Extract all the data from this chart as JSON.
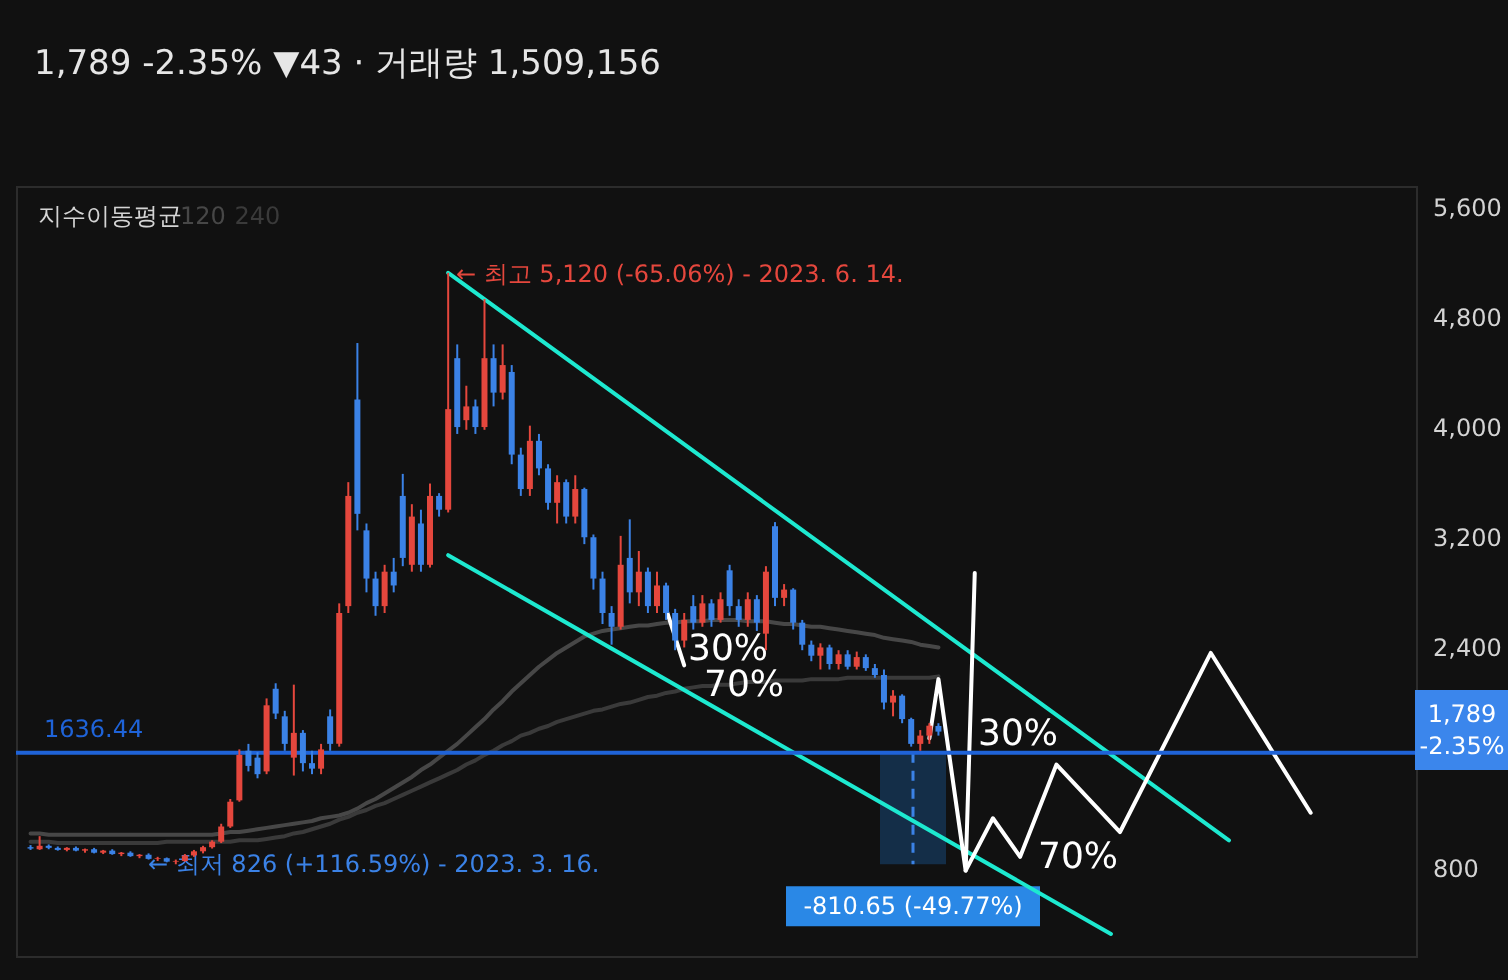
{
  "chart_data": {
    "type": "candlestick",
    "title": "1,789 -2.35% ▼43 · 거래량 1,509,156",
    "legend": "top left",
    "legend_title": "지수이동평균",
    "tick_labels": "y",
    "ylim": [
      160,
      5750
    ],
    "yticks": [
      800,
      {
        "value": 2400,
        "label": "2,400"
      },
      {
        "value": 3200,
        "label": "3,200"
      },
      {
        "value": 4000,
        "label": "4,000"
      },
      {
        "value": 4800,
        "label": "4,800"
      },
      {
        "value": 5600,
        "label": "5,600"
      }
    ],
    "categories": [
      null,
      null,
      null,
      null,
      null,
      null,
      null,
      null,
      null,
      null,
      null,
      null,
      null,
      null,
      null,
      null,
      null,
      null,
      null,
      null,
      null,
      null,
      null,
      null,
      null,
      null,
      null,
      null,
      null,
      null,
      null,
      null,
      null,
      null,
      null,
      null,
      null,
      null,
      null,
      null,
      null,
      null,
      null,
      null,
      null,
      null,
      null,
      null,
      null,
      null,
      null,
      null,
      null,
      null,
      null,
      null,
      null,
      null,
      null,
      null,
      null,
      null,
      null,
      null,
      null,
      null,
      null,
      null,
      null,
      null,
      null,
      null,
      null,
      null,
      null,
      null,
      null,
      null,
      null,
      null,
      null,
      null,
      null,
      null,
      null,
      null,
      null,
      null,
      null,
      null,
      null,
      null,
      null,
      null,
      null,
      null,
      null,
      null,
      null,
      null,
      null,
      null,
      null,
      null,
      null,
      null,
      null,
      null,
      null,
      null,
      null,
      null,
      null,
      null,
      null,
      null,
      null,
      null,
      null,
      null,
      null,
      null,
      null,
      null,
      null,
      null,
      null,
      null,
      null,
      null,
      null,
      null,
      null,
      null,
      null,
      null,
      null,
      null,
      null,
      null,
      null,
      null,
      null,
      null,
      null,
      null,
      null,
      null,
      null,
      null,
      null,
      null
    ],
    "ohlc": [
      [
        950,
        965,
        930,
        940
      ],
      [
        935,
        1030,
        930,
        960
      ],
      [
        960,
        970,
        935,
        945
      ],
      [
        945,
        955,
        925,
        930
      ],
      [
        930,
        950,
        920,
        945
      ],
      [
        945,
        955,
        920,
        925
      ],
      [
        925,
        940,
        910,
        935
      ],
      [
        935,
        945,
        905,
        910
      ],
      [
        910,
        930,
        900,
        925
      ],
      [
        925,
        935,
        895,
        900
      ],
      [
        900,
        915,
        885,
        910
      ],
      [
        910,
        920,
        880,
        885
      ],
      [
        885,
        900,
        870,
        895
      ],
      [
        895,
        905,
        860,
        865
      ],
      [
        865,
        880,
        850,
        870
      ],
      [
        870,
        875,
        840,
        845
      ],
      [
        845,
        860,
        826,
        850
      ],
      [
        850,
        900,
        845,
        890
      ],
      [
        890,
        930,
        880,
        920
      ],
      [
        920,
        960,
        905,
        950
      ],
      [
        950,
        1000,
        940,
        990
      ],
      [
        990,
        1120,
        980,
        1100
      ],
      [
        1100,
        1300,
        1090,
        1280
      ],
      [
        1290,
        1660,
        1280,
        1620
      ],
      [
        1650,
        1700,
        1500,
        1540
      ],
      [
        1600,
        1640,
        1450,
        1480
      ],
      [
        1500,
        2030,
        1480,
        1980
      ],
      [
        2100,
        2140,
        1880,
        1920
      ],
      [
        1900,
        1940,
        1650,
        1700
      ],
      [
        1600,
        2130,
        1470,
        1780
      ],
      [
        1780,
        1800,
        1500,
        1560
      ],
      [
        1560,
        1650,
        1480,
        1520
      ],
      [
        1520,
        1700,
        1480,
        1660
      ],
      [
        1900,
        1950,
        1650,
        1700
      ],
      [
        1700,
        2720,
        1680,
        2650
      ],
      [
        2700,
        3600,
        2650,
        3500
      ],
      [
        4200,
        4610,
        3250,
        3370
      ],
      [
        3250,
        3300,
        2800,
        2900
      ],
      [
        2900,
        2950,
        2630,
        2700
      ],
      [
        2700,
        3000,
        2650,
        2950
      ],
      [
        2950,
        3050,
        2800,
        2850
      ],
      [
        3500,
        3660,
        2990,
        3050
      ],
      [
        3000,
        3440,
        2950,
        3350
      ],
      [
        3300,
        3400,
        2950,
        3000
      ],
      [
        3000,
        3590,
        2980,
        3500
      ],
      [
        3500,
        3520,
        3350,
        3400
      ],
      [
        3400,
        5120,
        3380,
        4130
      ],
      [
        4500,
        4600,
        3950,
        4000
      ],
      [
        4050,
        4300,
        3980,
        4150
      ],
      [
        4150,
        4200,
        3950,
        4000
      ],
      [
        4000,
        4930,
        3980,
        4500
      ],
      [
        4500,
        4600,
        4150,
        4250
      ],
      [
        4250,
        4600,
        4200,
        4450
      ],
      [
        4400,
        4450,
        3730,
        3800
      ],
      [
        3800,
        3850,
        3500,
        3550
      ],
      [
        3550,
        4010,
        3500,
        3900
      ],
      [
        3900,
        3950,
        3650,
        3700
      ],
      [
        3700,
        3730,
        3400,
        3450
      ],
      [
        3450,
        3650,
        3300,
        3600
      ],
      [
        3600,
        3620,
        3300,
        3350
      ],
      [
        3350,
        3650,
        3300,
        3550
      ],
      [
        3550,
        3560,
        3150,
        3200
      ],
      [
        3200,
        3220,
        2820,
        2900
      ],
      [
        2900,
        2950,
        2570,
        2650
      ],
      [
        2650,
        2700,
        2420,
        2550
      ],
      [
        2550,
        3210,
        2530,
        3000
      ],
      [
        3050,
        3330,
        2720,
        2800
      ],
      [
        2800,
        3100,
        2700,
        2950
      ],
      [
        2950,
        2980,
        2650,
        2700
      ],
      [
        2700,
        2950,
        2650,
        2850
      ],
      [
        2850,
        2870,
        2600,
        2650
      ],
      [
        2650,
        2680,
        2380,
        2450
      ],
      [
        2450,
        2650,
        2400,
        2600
      ],
      [
        2700,
        2780,
        2530,
        2580
      ],
      [
        2580,
        2780,
        2550,
        2720
      ],
      [
        2720,
        2750,
        2550,
        2600
      ],
      [
        2600,
        2800,
        2580,
        2750
      ],
      [
        2960,
        3000,
        2630,
        2700
      ],
      [
        2700,
        2750,
        2550,
        2600
      ],
      [
        2600,
        2800,
        2550,
        2750
      ],
      [
        2750,
        2780,
        2520,
        2580
      ],
      [
        2500,
        2990,
        2380,
        2950
      ],
      [
        3280,
        3310,
        2700,
        2760
      ],
      [
        2760,
        2860,
        2700,
        2820
      ],
      [
        2820,
        2830,
        2530,
        2580
      ],
      [
        2580,
        2600,
        2380,
        2420
      ],
      [
        2420,
        2450,
        2300,
        2340
      ],
      [
        2340,
        2430,
        2240,
        2400
      ],
      [
        2400,
        2420,
        2240,
        2280
      ],
      [
        2280,
        2380,
        2240,
        2350
      ],
      [
        2350,
        2380,
        2240,
        2260
      ],
      [
        2260,
        2370,
        2240,
        2330
      ],
      [
        2330,
        2350,
        2230,
        2250
      ],
      [
        2250,
        2280,
        2180,
        2200
      ],
      [
        2200,
        2240,
        1950,
        2000
      ],
      [
        2000,
        2090,
        1900,
        2050
      ],
      [
        2050,
        2060,
        1850,
        1880
      ],
      [
        1880,
        1890,
        1680,
        1700
      ],
      [
        1700,
        1800,
        1650,
        1760
      ],
      [
        1760,
        1850,
        1700,
        1832
      ],
      [
        1830,
        1850,
        1760,
        1789
      ],
      null,
      null,
      null,
      null,
      null,
      null,
      null,
      null,
      null,
      null,
      null,
      null,
      null,
      null,
      null,
      null,
      null,
      null,
      null,
      null,
      null,
      null,
      null,
      null,
      null,
      null,
      null,
      null,
      null,
      null,
      null,
      null,
      null,
      null,
      null,
      null,
      null,
      null,
      null,
      null,
      null,
      null,
      null,
      null,
      null,
      null,
      null,
      null,
      null,
      null,
      null
    ],
    "colors": [
      "#3b82e6",
      "#e5473d",
      "#3b82e6",
      "#3b82e6",
      "#e5473d",
      "#3b82e6",
      "#e5473d",
      "#3b82e6",
      "#e5473d",
      "#3b82e6",
      "#e5473d",
      "#3b82e6",
      "#e5473d",
      "#3b82e6",
      "#e5473d",
      "#3b82e6",
      "#e5473d",
      "#e5473d",
      "#e5473d",
      "#e5473d",
      "#e5473d",
      "#e5473d",
      "#e5473d",
      "#e5473d",
      "#3b82e6",
      "#3b82e6",
      "#e5473d",
      "#3b82e6",
      "#3b82e6",
      "#e5473d",
      "#3b82e6",
      "#3b82e6",
      "#e5473d",
      "#3b82e6",
      "#e5473d",
      "#e5473d",
      "#3b82e6",
      "#3b82e6",
      "#3b82e6",
      "#e5473d",
      "#3b82e6",
      "#3b82e6",
      "#e5473d",
      "#3b82e6",
      "#e5473d",
      "#3b82e6",
      "#e5473d",
      "#3b82e6",
      "#e5473d",
      "#3b82e6",
      "#e5473d",
      "#3b82e6",
      "#e5473d",
      "#3b82e6",
      "#3b82e6",
      "#e5473d",
      "#3b82e6",
      "#3b82e6",
      "#e5473d",
      "#3b82e6",
      "#e5473d",
      "#3b82e6",
      "#3b82e6",
      "#3b82e6",
      "#3b82e6",
      "#e5473d",
      "#3b82e6",
      "#e5473d",
      "#3b82e6",
      "#e5473d",
      "#3b82e6",
      "#3b82e6",
      "#e5473d",
      "#3b82e6",
      "#e5473d",
      "#3b82e6",
      "#e5473d",
      "#3b82e6",
      "#3b82e6",
      "#e5473d",
      "#3b82e6",
      "#e5473d",
      "#3b82e6",
      "#e5473d",
      "#3b82e6",
      "#3b82e6",
      "#3b82e6",
      "#e5473d",
      "#3b82e6",
      "#e5473d",
      "#3b82e6",
      "#e5473d",
      "#3b82e6",
      "#3b82e6",
      "#3b82e6",
      "#e5473d",
      "#3b82e6",
      "#3b82e6",
      "#e5473d",
      "#e5473d",
      "#3b82e6",
      null,
      null,
      null,
      null,
      null,
      null,
      null,
      null,
      null,
      null,
      null,
      null,
      null,
      null,
      null,
      null,
      null,
      null,
      null,
      null,
      null,
      null,
      null,
      null,
      null,
      null,
      null,
      null,
      null,
      null,
      null,
      null,
      null,
      null,
      null,
      null,
      null,
      null,
      null,
      null,
      null,
      null,
      null,
      null,
      null,
      null,
      null,
      null,
      null,
      null,
      null
    ],
    "series": [
      {
        "type": "line",
        "name": "120",
        "color": "#474747",
        "values": [
          1050,
          1050,
          1040,
          1040,
          1040,
          1040,
          1040,
          1040,
          1040,
          1040,
          1040,
          1040,
          1040,
          1040,
          1040,
          1040,
          1040,
          1040,
          1040,
          1040,
          1040,
          1050,
          1060,
          1060,
          1070,
          1080,
          1090,
          1100,
          1110,
          1120,
          1130,
          1140,
          1160,
          1170,
          1180,
          1200,
          1230,
          1270,
          1300,
          1340,
          1380,
          1420,
          1460,
          1510,
          1550,
          1600,
          1650,
          1700,
          1760,
          1820,
          1880,
          1950,
          2010,
          2080,
          2140,
          2200,
          2260,
          2310,
          2360,
          2400,
          2440,
          2480,
          2500,
          2520,
          2530,
          2540,
          2550,
          2560,
          2560,
          2570,
          2580,
          2580,
          2590,
          2590,
          2590,
          2600,
          2600,
          2600,
          2600,
          2590,
          2590,
          2590,
          2580,
          2570,
          2570,
          2560,
          2550,
          2550,
          2540,
          2530,
          2520,
          2510,
          2500,
          2490,
          2470,
          2460,
          2450,
          2440,
          2420,
          2410,
          2400,
          null,
          null,
          null,
          null,
          null,
          null,
          null,
          null,
          null,
          null,
          null,
          null,
          null,
          null,
          null,
          null,
          null,
          null,
          null,
          null,
          null,
          null,
          null,
          null,
          null,
          null,
          null,
          null,
          null,
          null,
          null,
          null,
          null,
          null,
          null,
          null,
          null,
          null,
          null,
          null,
          null,
          null,
          null,
          null,
          null,
          null,
          null,
          null,
          null,
          null,
          null
        ]
      },
      {
        "type": "line",
        "name": "240",
        "color": "#3a3a3a",
        "values": [
          990,
          990,
          990,
          980,
          980,
          980,
          980,
          980,
          980,
          980,
          980,
          980,
          980,
          980,
          980,
          990,
          990,
          990,
          990,
          990,
          990,
          990,
          990,
          1000,
          1000,
          1000,
          1010,
          1020,
          1030,
          1050,
          1060,
          1080,
          1100,
          1120,
          1150,
          1170,
          1200,
          1220,
          1250,
          1270,
          1300,
          1330,
          1360,
          1390,
          1420,
          1450,
          1480,
          1510,
          1550,
          1580,
          1620,
          1650,
          1690,
          1720,
          1760,
          1780,
          1810,
          1830,
          1860,
          1880,
          1900,
          1920,
          1940,
          1950,
          1970,
          1990,
          2000,
          2020,
          2040,
          2050,
          2070,
          2080,
          2100,
          2110,
          2120,
          2120,
          2130,
          2130,
          2140,
          2150,
          2150,
          2150,
          2160,
          2160,
          2160,
          2160,
          2170,
          2170,
          2170,
          2170,
          2180,
          2180,
          2180,
          2180,
          2180,
          2180,
          2180,
          2180,
          2180,
          2180,
          2190,
          null,
          null,
          null,
          null,
          null,
          null,
          null,
          null,
          null,
          null,
          null,
          null,
          null,
          null,
          null,
          null,
          null,
          null,
          null,
          null,
          null,
          null,
          null,
          null,
          null,
          null,
          null,
          null,
          null,
          null,
          null,
          null,
          null,
          null,
          null,
          null,
          null,
          null,
          null,
          null,
          null,
          null,
          null,
          null,
          null,
          null,
          null,
          null,
          null,
          null,
          null
        ]
      },
      {
        "type": "line",
        "color": "#1de9d0",
        "values": [
          null,
          null,
          null,
          null,
          null,
          null,
          null,
          null,
          null,
          null,
          null,
          null,
          null,
          null,
          null,
          null,
          null,
          null,
          null,
          null,
          null,
          null,
          null,
          null,
          null,
          null,
          null,
          null,
          null,
          null,
          null,
          null,
          null,
          null,
          null,
          null,
          null,
          null,
          null,
          null,
          null,
          null,
          null,
          null,
          null,
          null,
          5120,
          null,
          null,
          null,
          null,
          null,
          null,
          null,
          null,
          null,
          null,
          null,
          null,
          null,
          null,
          null,
          null,
          null,
          null,
          null,
          null,
          null,
          null,
          null,
          null,
          null,
          null,
          null,
          null,
          null,
          null,
          null,
          null,
          null,
          null,
          null,
          null,
          null,
          null,
          null,
          null,
          null,
          null,
          null,
          null,
          null,
          null,
          null,
          null,
          null,
          null,
          null,
          null,
          null,
          null,
          null,
          null,
          null,
          null,
          null,
          null,
          null,
          null,
          null,
          null,
          null,
          null,
          null,
          null,
          null,
          null,
          null,
          null,
          null,
          null,
          null,
          null,
          null,
          null,
          null,
          null,
          null,
          null,
          null,
          null,
          null,
          1000,
          null,
          null,
          null,
          null,
          null,
          null,
          null,
          null,
          null,
          null,
          null,
          null,
          null,
          null,
          null,
          null,
          null,
          null,
          null
        ]
      },
      {
        "type": "line",
        "color": "#1de9d0",
        "values": [
          null,
          null,
          null,
          null,
          null,
          null,
          null,
          null,
          null,
          null,
          null,
          null,
          null,
          null,
          null,
          null,
          null,
          null,
          null,
          null,
          null,
          null,
          null,
          null,
          null,
          null,
          null,
          null,
          null,
          null,
          null,
          null,
          null,
          null,
          null,
          null,
          null,
          null,
          null,
          null,
          null,
          null,
          null,
          null,
          null,
          null,
          3070,
          null,
          null,
          null,
          null,
          null,
          null,
          null,
          null,
          null,
          null,
          null,
          null,
          null,
          null,
          null,
          null,
          null,
          null,
          null,
          null,
          null,
          null,
          null,
          null,
          null,
          null,
          null,
          null,
          null,
          null,
          null,
          null,
          null,
          null,
          null,
          null,
          null,
          null,
          null,
          null,
          null,
          null,
          null,
          null,
          null,
          null,
          null,
          null,
          null,
          null,
          null,
          null,
          null,
          null,
          null,
          null,
          null,
          null,
          null,
          null,
          null,
          null,
          null,
          null,
          null,
          null,
          null,
          null,
          null,
          null,
          null,
          null,
          320,
          null,
          null,
          null,
          null,
          null,
          null,
          null,
          null,
          null,
          null,
          null,
          null,
          null,
          null,
          null,
          null,
          null,
          null,
          null,
          null,
          null,
          null,
          null,
          null,
          null,
          null,
          null,
          null,
          null,
          null,
          null,
          null
        ]
      },
      {
        "type": "line",
        "color": "#ffffff",
        "values": [
          null,
          null,
          null,
          null,
          null,
          null,
          null,
          null,
          null,
          null,
          null,
          null,
          null,
          null,
          null,
          null,
          null,
          null,
          null,
          null,
          null,
          null,
          null,
          null,
          null,
          null,
          null,
          null,
          null,
          null,
          null,
          null,
          null,
          null,
          null,
          null,
          null,
          null,
          null,
          null,
          null,
          null,
          null,
          null,
          null,
          null,
          null,
          null,
          null,
          null,
          null,
          null,
          null,
          null,
          null,
          null,
          null,
          null,
          null,
          null,
          null,
          null,
          null,
          null,
          null,
          null,
          null,
          null,
          null,
          null,
          2680,
          null,
          2270,
          null,
          null,
          null,
          null,
          null,
          null,
          null,
          null,
          null,
          null,
          null,
          null,
          null,
          null,
          null,
          null,
          null,
          null,
          null,
          null,
          null,
          null,
          null,
          null,
          null,
          null,
          null,
          null,
          null,
          null,
          null,
          null,
          null,
          null,
          null,
          null,
          null,
          null,
          null,
          null,
          null,
          null,
          null,
          null,
          null,
          null,
          null,
          null,
          null,
          null,
          null,
          null,
          null,
          null,
          null,
          null,
          null,
          null,
          null,
          null,
          null,
          null,
          null,
          null,
          null,
          null,
          null,
          null,
          null,
          null,
          null,
          null,
          null,
          null,
          null,
          null,
          null,
          null,
          null
        ]
      },
      {
        "type": "line",
        "color": "#ffffff",
        "values": [
          null,
          null,
          null,
          null,
          null,
          null,
          null,
          null,
          null,
          null,
          null,
          null,
          null,
          null,
          null,
          null,
          null,
          null,
          null,
          null,
          null,
          null,
          null,
          null,
          null,
          null,
          null,
          null,
          null,
          null,
          null,
          null,
          null,
          null,
          null,
          null,
          null,
          null,
          null,
          null,
          null,
          null,
          null,
          null,
          null,
          null,
          null,
          null,
          null,
          null,
          null,
          null,
          null,
          null,
          null,
          null,
          null,
          null,
          null,
          null,
          null,
          null,
          null,
          null,
          null,
          null,
          null,
          null,
          null,
          null,
          null,
          null,
          null,
          null,
          null,
          null,
          null,
          null,
          null,
          null,
          null,
          null,
          null,
          null,
          null,
          null,
          null,
          null,
          null,
          null,
          null,
          null,
          null,
          null,
          null,
          null,
          null,
          null,
          null,
          1740,
          2170,
          null,
          null,
          780,
          2940,
          null,
          null,
          null,
          null,
          null,
          null,
          null,
          null,
          null,
          null,
          null,
          null,
          null,
          null,
          null,
          null,
          null,
          null,
          null,
          null,
          null,
          null,
          null,
          null,
          null,
          null,
          null,
          null,
          null,
          null,
          null,
          null,
          null,
          null,
          null,
          null,
          null,
          null,
          null,
          null,
          null,
          null,
          null,
          null,
          null,
          null,
          null
        ]
      },
      {
        "type": "line",
        "color": "#ffffff",
        "values": [
          null,
          null,
          null,
          null,
          null,
          null,
          null,
          null,
          null,
          null,
          null,
          null,
          null,
          null,
          null,
          null,
          null,
          null,
          null,
          null,
          null,
          null,
          null,
          null,
          null,
          null,
          null,
          null,
          null,
          null,
          null,
          null,
          null,
          null,
          null,
          null,
          null,
          null,
          null,
          null,
          null,
          null,
          null,
          null,
          null,
          null,
          null,
          null,
          null,
          null,
          null,
          null,
          null,
          null,
          null,
          null,
          null,
          null,
          null,
          null,
          null,
          null,
          null,
          null,
          null,
          null,
          null,
          null,
          null,
          null,
          null,
          null,
          null,
          null,
          null,
          null,
          null,
          null,
          null,
          null,
          null,
          null,
          null,
          null,
          null,
          null,
          null,
          null,
          null,
          null,
          null,
          null,
          null,
          null,
          null,
          null,
          null,
          null,
          null,
          null,
          null,
          null,
          null,
          780,
          null,
          null,
          1160,
          null,
          null,
          880,
          null,
          null,
          null,
          1550,
          null,
          null,
          null,
          null,
          null,
          null,
          1060,
          null,
          null,
          null,
          null,
          null,
          null,
          null,
          null,
          null,
          2360,
          null,
          null,
          null,
          null,
          null,
          null,
          null,
          null,
          null,
          null,
          1200,
          null,
          null,
          null,
          null,
          null,
          null,
          null,
          null,
          null,
          null
        ]
      }
    ],
    "ref_lines": [
      {
        "axis": "y",
        "value": 1636.44,
        "label": "1636.44",
        "color": "#1f63d8"
      }
    ],
    "bands": [
      {
        "axis": "y",
        "from": 825.79,
        "to": 1636.44,
        "label": "-810.65 (-49.77%)",
        "color": "#15304c"
      }
    ],
    "annotations": [
      "← 최고 5,120 (-65.06%) - 2023. 6. 14.",
      "← 최저 826 (+116.59%) - 2023. 3. 16.",
      "1,789\n-2.35%",
      "30%",
      "70%",
      "30%",
      "70%"
    ]
  }
}
